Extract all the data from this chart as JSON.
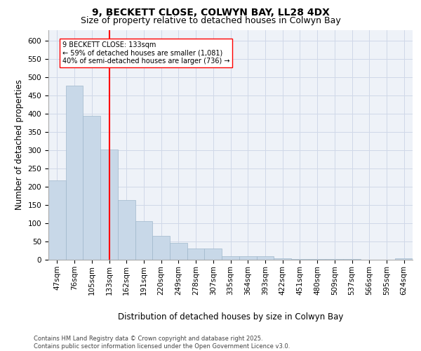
{
  "title_line1": "9, BECKETT CLOSE, COLWYN BAY, LL28 4DX",
  "title_line2": "Size of property relative to detached houses in Colwyn Bay",
  "xlabel": "Distribution of detached houses by size in Colwyn Bay",
  "ylabel": "Number of detached properties",
  "categories": [
    "47sqm",
    "76sqm",
    "105sqm",
    "133sqm",
    "162sqm",
    "191sqm",
    "220sqm",
    "249sqm",
    "278sqm",
    "307sqm",
    "335sqm",
    "364sqm",
    "393sqm",
    "422sqm",
    "451sqm",
    "480sqm",
    "509sqm",
    "537sqm",
    "566sqm",
    "595sqm",
    "624sqm"
  ],
  "values": [
    218,
    478,
    395,
    302,
    163,
    105,
    65,
    46,
    30,
    30,
    10,
    10,
    10,
    3,
    2,
    2,
    1,
    1,
    0,
    0,
    3
  ],
  "bar_color": "#c8d8e8",
  "bar_edge_color": "#a0b8cc",
  "vline_x_index": 3,
  "vline_color": "red",
  "annotation_text": "9 BECKETT CLOSE: 133sqm\n← 59% of detached houses are smaller (1,081)\n40% of semi-detached houses are larger (736) →",
  "annotation_box_color": "white",
  "annotation_box_edgecolor": "red",
  "ylim": [
    0,
    630
  ],
  "yticks": [
    0,
    50,
    100,
    150,
    200,
    250,
    300,
    350,
    400,
    450,
    500,
    550,
    600
  ],
  "grid_color": "#d0d8e8",
  "background_color": "#eef2f8",
  "footer_text": "Contains HM Land Registry data © Crown copyright and database right 2025.\nContains public sector information licensed under the Open Government Licence v3.0.",
  "title_fontsize": 10,
  "subtitle_fontsize": 9,
  "axis_label_fontsize": 8.5,
  "tick_fontsize": 7.5,
  "annotation_fontsize": 7,
  "footer_fontsize": 6
}
